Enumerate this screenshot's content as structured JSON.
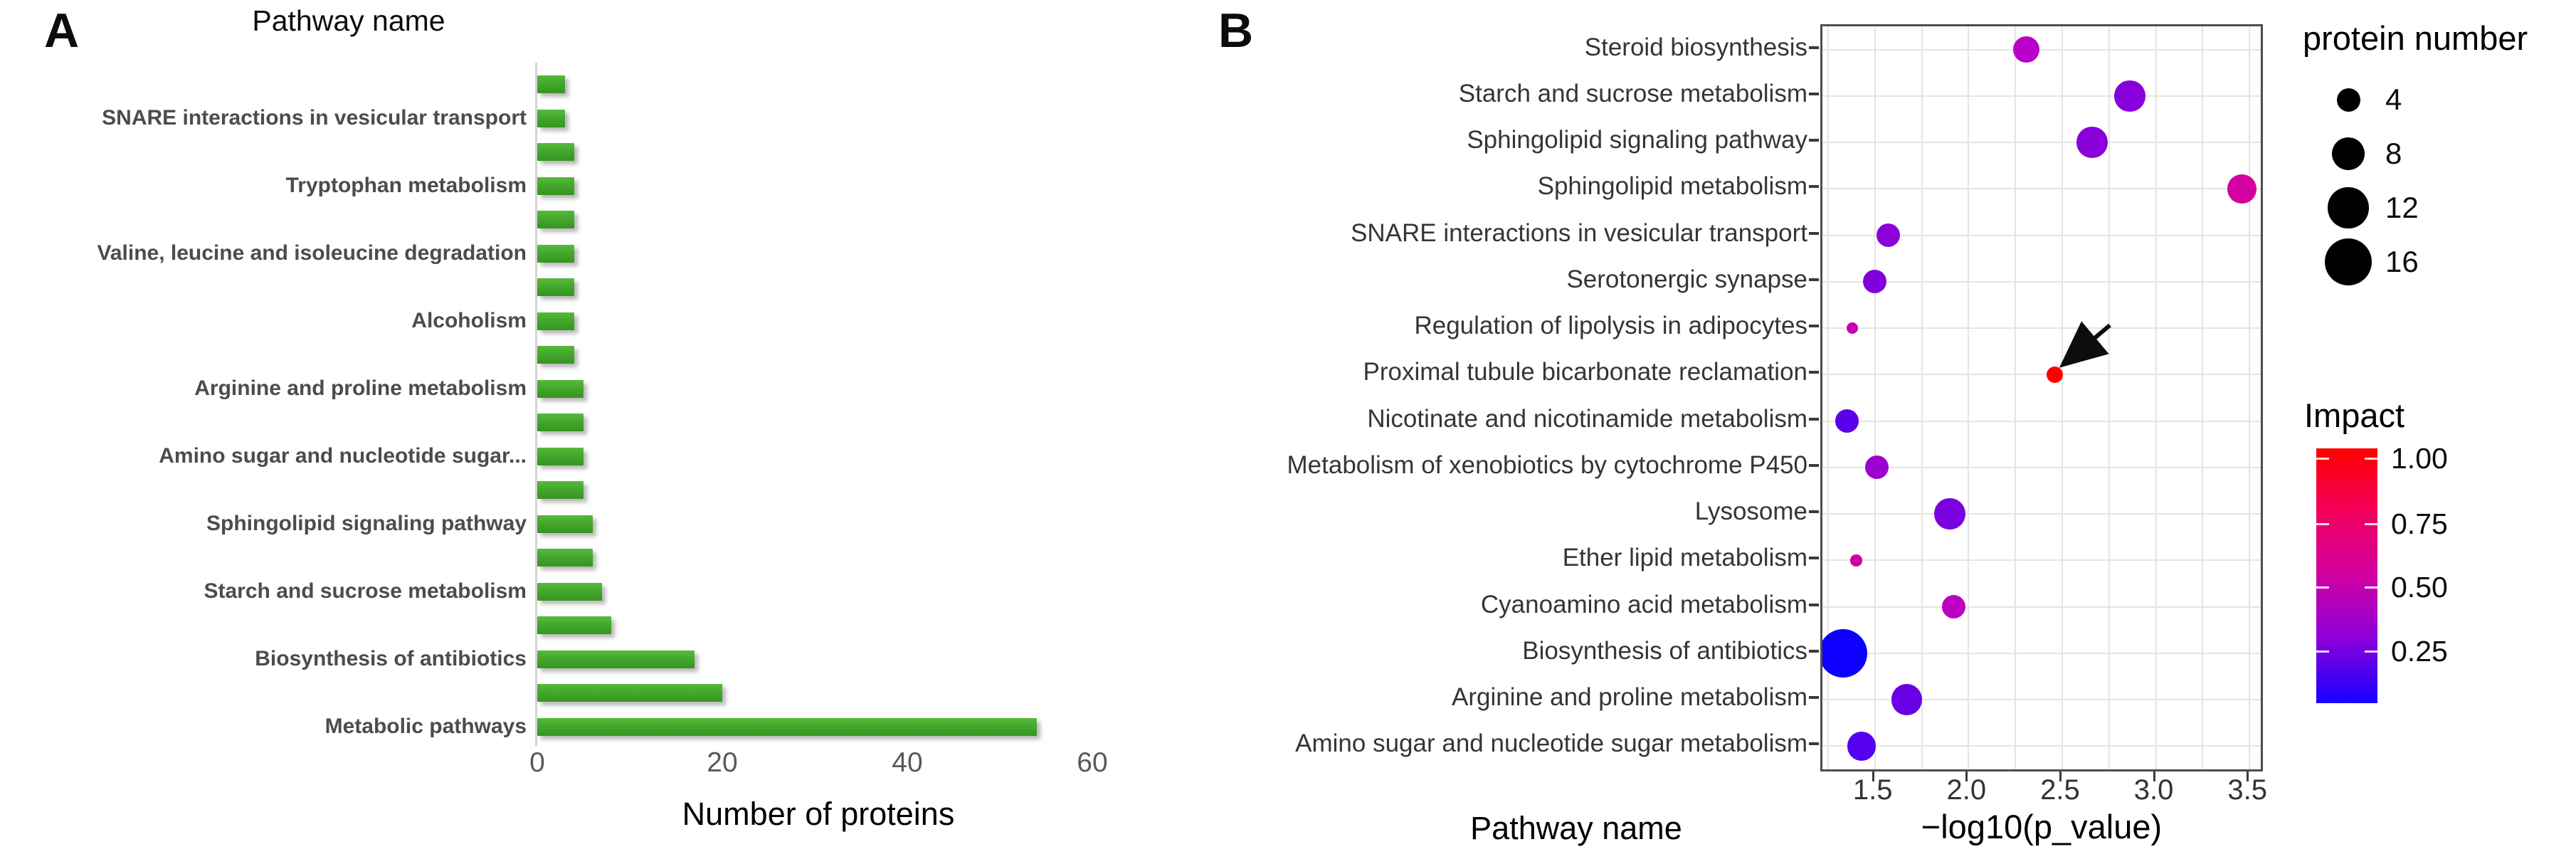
{
  "panel_a": {
    "label": "A",
    "title": "Pathway name",
    "xlabel": "Number of proteins",
    "x_ticks": [
      0,
      20,
      40,
      60
    ],
    "bar_color_top": "#56ba3a",
    "bar_color": "#41a42b",
    "bar_color_bottom": "#379422",
    "bars": [
      {
        "name": "",
        "value": 3
      },
      {
        "name": "SNARE interactions in vesicular transport",
        "value": 3
      },
      {
        "name": "",
        "value": 4
      },
      {
        "name": "Tryptophan metabolism",
        "value": 4
      },
      {
        "name": "",
        "value": 4
      },
      {
        "name": "Valine, leucine and isoleucine degradation",
        "value": 4
      },
      {
        "name": "",
        "value": 4
      },
      {
        "name": "Alcoholism",
        "value": 4
      },
      {
        "name": "",
        "value": 4
      },
      {
        "name": "Arginine and proline metabolism",
        "value": 5
      },
      {
        "name": "",
        "value": 5
      },
      {
        "name": "Amino sugar and nucleotide sugar...",
        "value": 5
      },
      {
        "name": "",
        "value": 5
      },
      {
        "name": "Sphingolipid signaling pathway",
        "value": 6
      },
      {
        "name": "",
        "value": 6
      },
      {
        "name": "Starch and sucrose metabolism",
        "value": 7
      },
      {
        "name": "",
        "value": 8
      },
      {
        "name": "Biosynthesis of antibiotics",
        "value": 17
      },
      {
        "name": "",
        "value": 20
      },
      {
        "name": "Metabolic pathways",
        "value": 54
      }
    ]
  },
  "panel_b": {
    "label": "B",
    "ylabel": "Pathway name",
    "xlabel": "−log10(p_value)",
    "x_ticks": [
      "1.5",
      "2.0",
      "2.5",
      "3.0",
      "3.5"
    ],
    "x_tick_values": [
      1.5,
      2.0,
      2.5,
      3.0,
      3.5
    ],
    "x_domain": [
      1.22,
      3.56
    ],
    "points": [
      {
        "pathway": "Steroid biosynthesis",
        "x": 2.31,
        "n": 5,
        "impact": 0.55,
        "color": "#bb00cb"
      },
      {
        "pathway": "Starch and sucrose metabolism",
        "x": 2.86,
        "n": 7,
        "impact": 0.38,
        "color": "#8800dc"
      },
      {
        "pathway": "Sphingolipid signaling pathway",
        "x": 2.66,
        "n": 7,
        "impact": 0.38,
        "color": "#8a00da"
      },
      {
        "pathway": "Sphingolipid metabolism",
        "x": 3.46,
        "n": 6,
        "impact": 0.67,
        "color": "#d4009f"
      },
      {
        "pathway": "SNARE interactions in vesicular transport",
        "x": 1.57,
        "n": 4,
        "impact": 0.4,
        "color": "#8d00d8"
      },
      {
        "pathway": "Serotonergic synapse",
        "x": 1.5,
        "n": 4,
        "impact": 0.37,
        "color": "#7d00dd"
      },
      {
        "pathway": "Regulation of lipolysis in adipocytes",
        "x": 1.38,
        "n": 1,
        "impact": 0.57,
        "color": "#c700b1"
      },
      {
        "pathway": "Proximal tubule bicarbonate reclamation",
        "x": 2.46,
        "n": 2,
        "impact": 1.0,
        "color": "#ff0000"
      },
      {
        "pathway": "Nicotinate and nicotinamide metabolism",
        "x": 1.35,
        "n": 4,
        "impact": 0.22,
        "color": "#5d00ea"
      },
      {
        "pathway": "Metabolism of xenobiotics by cytochrome P450",
        "x": 1.51,
        "n": 4,
        "impact": 0.46,
        "color": "#9d00d2"
      },
      {
        "pathway": "Lysosome",
        "x": 1.9,
        "n": 7,
        "impact": 0.35,
        "color": "#7b00de"
      },
      {
        "pathway": "Ether lipid metabolism",
        "x": 1.4,
        "n": 1,
        "impact": 0.64,
        "color": "#d0009c"
      },
      {
        "pathway": "Cyanoamino acid metabolism",
        "x": 1.92,
        "n": 4,
        "impact": 0.52,
        "color": "#bc00c2"
      },
      {
        "pathway": "Biosynthesis of antibiotics",
        "x": 1.33,
        "n": 17,
        "impact": 0.04,
        "color": "#0d00ff"
      },
      {
        "pathway": "Arginine and proline metabolism",
        "x": 1.67,
        "n": 7,
        "impact": 0.26,
        "color": "#6a00e5"
      },
      {
        "pathway": "Amino sugar and nucleotide sugar metabolism",
        "x": 1.43,
        "n": 6,
        "impact": 0.18,
        "color": "#5500ee"
      }
    ],
    "size_legend": {
      "title": "protein number",
      "items": [
        4,
        8,
        12,
        16
      ]
    },
    "color_legend": {
      "title": "Impact",
      "ticks": [
        "1.00",
        "0.75",
        "0.50",
        "0.25"
      ],
      "gradient": [
        "#ff0000",
        "#f2005c",
        "#d000a2",
        "#8b00da",
        "#1400ff"
      ]
    },
    "annotation_arrow_target": "Proximal tubule bicarbonate reclamation"
  },
  "chart_data": [
    {
      "type": "bar",
      "orientation": "horizontal",
      "title": "Pathway name",
      "xlabel": "Number of proteins",
      "xlim": [
        0,
        60
      ],
      "x_ticks": [
        0,
        20,
        40,
        60
      ],
      "bar_color": "#41a42b",
      "note": "category labels shown only on alternating bars",
      "categories": [
        "",
        "SNARE interactions in vesicular transport",
        "",
        "Tryptophan metabolism",
        "",
        "Valine, leucine and isoleucine degradation",
        "",
        "Alcoholism",
        "",
        "Arginine and proline metabolism",
        "",
        "Amino sugar and nucleotide sugar...",
        "",
        "Sphingolipid signaling pathway",
        "",
        "Starch and sucrose metabolism",
        "",
        "Biosynthesis of antibiotics",
        "",
        "Metabolic pathways"
      ],
      "values": [
        3,
        3,
        4,
        4,
        4,
        4,
        4,
        4,
        4,
        5,
        5,
        5,
        5,
        6,
        6,
        7,
        8,
        17,
        20,
        54
      ]
    },
    {
      "type": "scatter",
      "xlabel": "−log10(p_value)",
      "ylabel": "Pathway name",
      "x_range": [
        1.22,
        3.56
      ],
      "x_ticks": [
        1.5,
        2.0,
        2.5,
        3.0,
        3.5
      ],
      "grid": true,
      "size_encoding": "protein number (4, 8, 12, 16)",
      "color_encoding": "Impact (blue 0 → red 1)",
      "categories": [
        "Steroid biosynthesis",
        "Starch and sucrose metabolism",
        "Sphingolipid signaling pathway",
        "Sphingolipid metabolism",
        "SNARE interactions in vesicular transport",
        "Serotonergic synapse",
        "Regulation of lipolysis in adipocytes",
        "Proximal tubule bicarbonate reclamation",
        "Nicotinate and nicotinamide metabolism",
        "Metabolism of xenobiotics by cytochrome P450",
        "Lysosome",
        "Ether lipid metabolism",
        "Cyanoamino acid metabolism",
        "Biosynthesis of antibiotics",
        "Arginine and proline metabolism",
        "Amino sugar and nucleotide sugar metabolism"
      ],
      "x_values": [
        2.31,
        2.86,
        2.66,
        3.46,
        1.57,
        1.5,
        1.38,
        2.46,
        1.35,
        1.51,
        1.9,
        1.4,
        1.92,
        1.33,
        1.67,
        1.43
      ],
      "protein_numbers": [
        5,
        7,
        7,
        6,
        4,
        4,
        1,
        2,
        4,
        4,
        7,
        1,
        4,
        17,
        7,
        6
      ],
      "impacts": [
        0.55,
        0.38,
        0.38,
        0.67,
        0.4,
        0.37,
        0.57,
        1.0,
        0.22,
        0.46,
        0.35,
        0.64,
        0.52,
        0.04,
        0.26,
        0.18
      ],
      "annotation": "arrow pointing to Proximal tubule bicarbonate reclamation point"
    }
  ]
}
